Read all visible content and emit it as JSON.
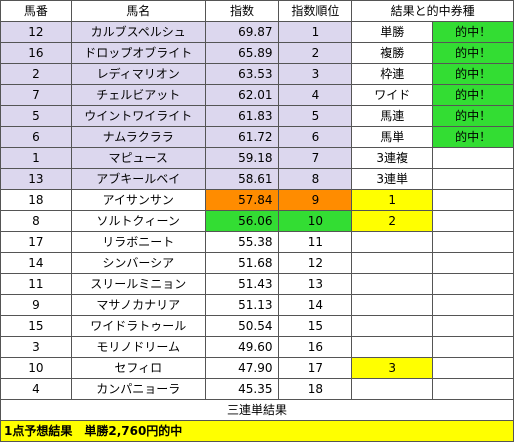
{
  "headers": {
    "umaban": "馬番",
    "bamei": "馬名",
    "shisu": "指数",
    "juni": "指数順位",
    "kekka": "結果と的中券種"
  },
  "rows": [
    {
      "umaban": "12",
      "name": "カルブスペルシュ",
      "shisu": "69.87",
      "juni": "1",
      "rank": "",
      "bet": "単勝",
      "hit": "的中！"
    },
    {
      "umaban": "16",
      "name": "ドロップオブライト",
      "shisu": "65.89",
      "juni": "2",
      "rank": "",
      "bet": "複勝",
      "hit": "的中！"
    },
    {
      "umaban": "2",
      "name": "レディマリオン",
      "shisu": "63.53",
      "juni": "3",
      "rank": "",
      "bet": "枠連",
      "hit": "的中！"
    },
    {
      "umaban": "7",
      "name": "チェルビアット",
      "shisu": "62.01",
      "juni": "4",
      "rank": "",
      "bet": "ワイド",
      "hit": "的中！"
    },
    {
      "umaban": "5",
      "name": "ウイントワイライト",
      "shisu": "61.83",
      "juni": "5",
      "rank": "",
      "bet": "馬連",
      "hit": "的中！"
    },
    {
      "umaban": "6",
      "name": "ナムラクララ",
      "shisu": "61.72",
      "juni": "6",
      "rank": "",
      "bet": "馬単",
      "hit": "的中！"
    },
    {
      "umaban": "1",
      "name": "マピュース",
      "shisu": "59.18",
      "juni": "7",
      "rank": "",
      "bet": "3連複",
      "hit": ""
    },
    {
      "umaban": "13",
      "name": "アブキールベイ",
      "shisu": "58.61",
      "juni": "8",
      "rank": "",
      "bet": "3連単",
      "hit": ""
    },
    {
      "umaban": "18",
      "name": "アイサンサン",
      "shisu": "57.84",
      "juni": "9",
      "rank": "1",
      "bet": "",
      "hit": ""
    },
    {
      "umaban": "8",
      "name": "ソルトクィーン",
      "shisu": "56.06",
      "juni": "10",
      "rank": "2",
      "bet": "",
      "hit": ""
    },
    {
      "umaban": "17",
      "name": "リラボニート",
      "shisu": "55.38",
      "juni": "11",
      "rank": "",
      "bet": "",
      "hit": ""
    },
    {
      "umaban": "14",
      "name": "シンバーシア",
      "shisu": "51.68",
      "juni": "12",
      "rank": "",
      "bet": "",
      "hit": ""
    },
    {
      "umaban": "11",
      "name": "スリールミニョン",
      "shisu": "51.43",
      "juni": "13",
      "rank": "",
      "bet": "",
      "hit": ""
    },
    {
      "umaban": "9",
      "name": "マサノカナリア",
      "shisu": "51.13",
      "juni": "14",
      "rank": "",
      "bet": "",
      "hit": ""
    },
    {
      "umaban": "15",
      "name": "ワイドラトゥール",
      "shisu": "50.54",
      "juni": "15",
      "rank": "",
      "bet": "",
      "hit": ""
    },
    {
      "umaban": "3",
      "name": "モリノドリーム",
      "shisu": "49.60",
      "juni": "16",
      "rank": "",
      "bet": "",
      "hit": ""
    },
    {
      "umaban": "10",
      "name": "セフィロ",
      "shisu": "47.90",
      "juni": "17",
      "rank": "3",
      "bet": "",
      "hit": ""
    },
    {
      "umaban": "4",
      "name": "カンパニョーラ",
      "shisu": "45.35",
      "juni": "18",
      "rank": "",
      "bet": "",
      "hit": ""
    }
  ],
  "footer": {
    "sanrentan_result": "三連単結果",
    "summary": "1点予想結果　単勝2,760円的中"
  },
  "colors": {
    "top8": "#dcd7ee",
    "orange": "#ff8c00",
    "green": "#33dd33",
    "yellow": "#ffff00"
  }
}
